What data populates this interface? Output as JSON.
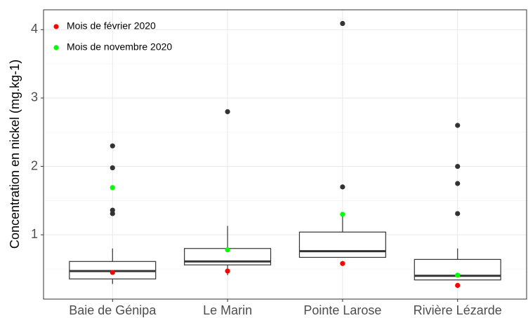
{
  "chart_data": {
    "type": "box",
    "y_label": "Concentration en nickel (mg.kg-1)",
    "categories": [
      "Baie de Génipa",
      "Le Marin",
      "Pointe Larose",
      "Rivière Lézarde"
    ],
    "boxes": [
      {
        "low": 0.28,
        "q1": 0.355,
        "median": 0.47,
        "q3": 0.61,
        "high": 0.8,
        "outliers": [
          2.3,
          1.98,
          1.36,
          1.31
        ]
      },
      {
        "low": 0.41,
        "q1": 0.56,
        "median": 0.61,
        "q3": 0.8,
        "high": 1.13,
        "outliers": [
          2.8
        ]
      },
      {
        "low": 0.67,
        "q1": 0.67,
        "median": 0.76,
        "q3": 1.04,
        "high": 1.3,
        "outliers": [
          4.09,
          1.7
        ]
      },
      {
        "low": 0.34,
        "q1": 0.34,
        "median": 0.4,
        "q3": 0.64,
        "high": 0.8,
        "outliers": [
          2.6,
          2.0,
          1.75,
          1.31
        ]
      }
    ],
    "box_color": "#333333",
    "series": [
      {
        "name": "Mois de février 2020",
        "color": "#ff0000",
        "values": [
          0.45,
          0.47,
          0.58,
          0.26
        ]
      },
      {
        "name": "Mois de novembre 2020",
        "color": "#00ff00",
        "values": [
          1.69,
          0.78,
          1.3,
          0.41
        ]
      }
    ],
    "ylim": [
      0.06,
      4.29
    ],
    "yticks": [
      1,
      2,
      3,
      4
    ],
    "yminorticks": [
      0.5,
      1.5,
      2.5,
      3.5
    ],
    "grid": true,
    "legend": "top-left"
  }
}
